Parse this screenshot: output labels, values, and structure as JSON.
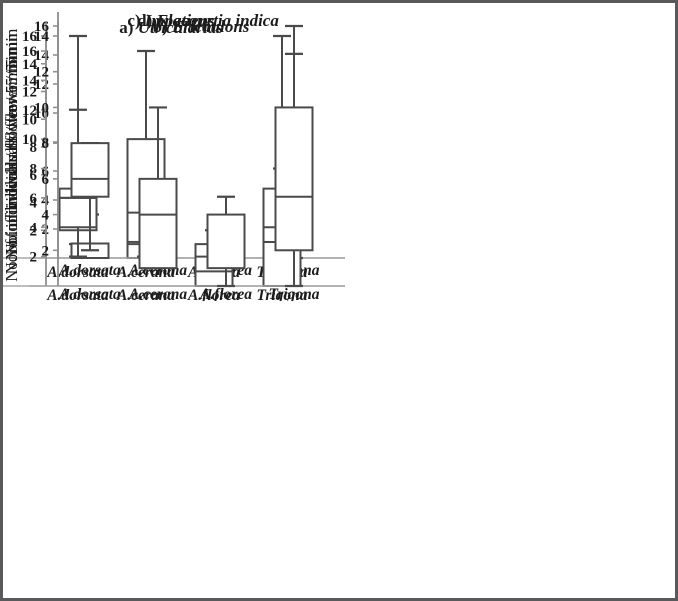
{
  "figure": {
    "ylabel": "No. of individuals / flower / 5 min",
    "categories": [
      "A.dorsata",
      "A.cerana",
      "A.florea",
      "Trigona"
    ],
    "colors": {
      "box_stroke": "#4a4a4a",
      "axis_line": "#8f8f8f",
      "baseline": "#a8a8a8",
      "frame_border": "#59595b",
      "text": "#1c1c1c",
      "background": "#ffffff"
    }
  },
  "chart_data": [
    {
      "type": "boxplot",
      "panel_id": "a",
      "title_prefix": "a)",
      "title": "Utricularias",
      "ylabel": "No. of individuals / flower / 5 min",
      "categories": [
        "A.dorsata",
        "A.cerana",
        "A.florea",
        "Trigona"
      ],
      "yticks": [
        2,
        4,
        6,
        8,
        10,
        12,
        14,
        16
      ],
      "ylim": [
        0,
        17
      ],
      "grid": false,
      "boxes": [
        {
          "category": "A.dorsata",
          "q1": 2,
          "median": 3,
          "q3": 5,
          "whisker_low": 1,
          "whisker_high": 16
        },
        {
          "category": "A.cerana",
          "q1": 0,
          "median": 1,
          "q3": 2,
          "whisker_low": null,
          "whisker_high": 6
        },
        {
          "category": "A.florea",
          "q1": 0,
          "median": null,
          "q3": 1,
          "whisker_low": null,
          "whisker_high": 2
        },
        {
          "category": "Trigona",
          "q1": 0,
          "median": 2,
          "q3": 5,
          "whisker_low": null,
          "whisker_high": 16
        }
      ]
    },
    {
      "type": "boxplot",
      "panel_id": "b",
      "title_prefix": "b)",
      "title": "Ericaulons",
      "ylabel": "No. of individuals / flower / 5 min",
      "categories": [
        "A.dorsata",
        "A.cerana",
        "A.florea",
        "Trigona"
      ],
      "yticks": [
        2,
        4,
        6,
        8,
        10,
        12,
        14,
        16
      ],
      "ylim": [
        0,
        17
      ],
      "grid": false,
      "boxes": [
        {
          "category": "A.dorsata",
          "q1": 0,
          "median": null,
          "q3": 1,
          "whisker_low": null,
          "whisker_high": 3
        },
        {
          "category": "A.cerana",
          "q1": 1,
          "median": null,
          "q3": 3,
          "whisker_low": 0,
          "whisker_high": 4
        },
        {
          "category": "A.florea",
          "q1": 0,
          "median": null,
          "q3": 1,
          "whisker_low": null,
          "whisker_high": 2
        },
        {
          "category": "Trigona",
          "q1": 3,
          "median": 6,
          "q3": 10,
          "whisker_low": 0,
          "whisker_high": 16
        }
      ]
    },
    {
      "type": "boxplot",
      "panel_id": "c",
      "title_prefix": "c)",
      "title": "Impatiens",
      "ylabel": "No. of individuals / flower / 5 min",
      "categories": [
        "A.dorsata",
        "A.cerana",
        "A.florea",
        "Trigona"
      ],
      "yticks": [
        2,
        4,
        6,
        8,
        10,
        12,
        14,
        16
      ],
      "ylim": [
        0,
        17
      ],
      "grid": false,
      "boxes": [
        {
          "category": "A.dorsata",
          "q1": 4,
          "median": 6,
          "q3": 6,
          "whisker_low": 2,
          "whisker_high": 12
        },
        {
          "category": "A.cerana",
          "q1": 3,
          "median": 5,
          "q3": 10,
          "whisker_low": 2,
          "whisker_high": 16
        },
        {
          "category": "A.florea",
          "q1": 0,
          "median": 1,
          "q3": 2,
          "whisker_low": null,
          "whisker_high": null
        },
        {
          "category": "Trigona",
          "q1": 0,
          "median": 3,
          "q3": 4,
          "whisker_low": null,
          "whisker_high": 8
        }
      ]
    },
    {
      "type": "boxplot",
      "panel_id": "d",
      "title_prefix": "d)",
      "title": "Flacourtia indica",
      "ylabel": "No. of individuals / flower / 5 min",
      "categories": [
        "A.dorsata",
        "A.cerana",
        "A.florea",
        "Trigona"
      ],
      "yticks": [
        2,
        4,
        6,
        8,
        10,
        12,
        14
      ],
      "ylim": [
        0,
        15
      ],
      "grid": false,
      "boxes": [
        {
          "category": "A.dorsata",
          "q1": 5,
          "median": 6,
          "q3": 8,
          "whisker_low": 2,
          "whisker_high": 8
        },
        {
          "category": "A.cerana",
          "q1": 1,
          "median": 4,
          "q3": 6,
          "whisker_low": null,
          "whisker_high": 10
        },
        {
          "category": "A.florea",
          "q1": 1,
          "median": null,
          "q3": 4,
          "whisker_low": 0,
          "whisker_high": 5
        },
        {
          "category": "Trigona",
          "q1": 2,
          "median": 5,
          "q3": 10,
          "whisker_low": 0,
          "whisker_high": 13
        }
      ]
    }
  ]
}
